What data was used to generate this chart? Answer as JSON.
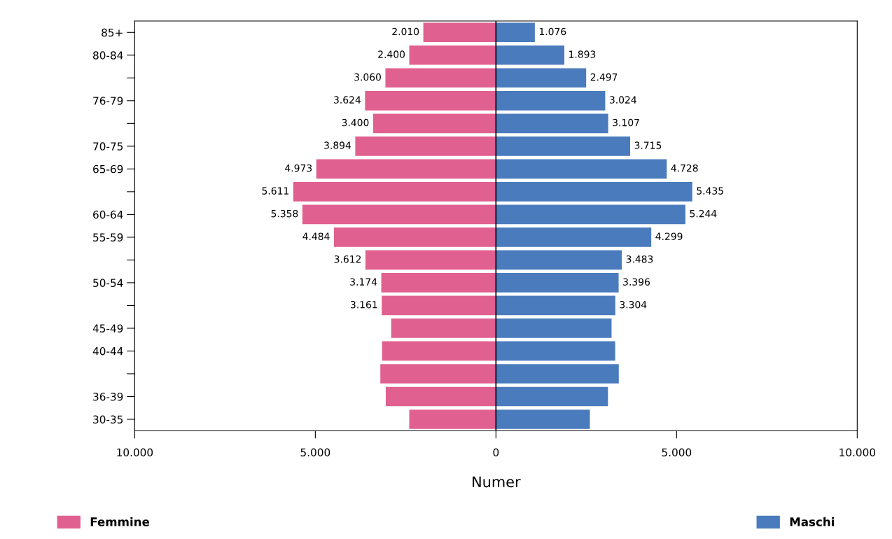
{
  "chart_data": {
    "type": "bar",
    "orientation": "horizontal",
    "categories": [
      "85+",
      "80-84",
      null,
      "76-79",
      null,
      "70-75",
      "65-69",
      null,
      "60-64",
      "55-59",
      null,
      "50-54",
      null,
      "45-49",
      "40-44",
      null,
      "36-39",
      "30-35"
    ],
    "series": [
      {
        "name": "Femmine",
        "color": "#e0608f",
        "values": [
          2010,
          2400,
          3060,
          3624,
          3400,
          3894,
          4973,
          5611,
          5358,
          4484,
          3612,
          3174,
          3161,
          2900,
          3150,
          3200,
          3050,
          2400
        ],
        "base": [
          -2010,
          -2400,
          -3060,
          -3624,
          -3400,
          -3894,
          -4973,
          -5611,
          -5358,
          -4484,
          -3612,
          -3174,
          -3161,
          -2900,
          -3150,
          -3200,
          -3050,
          -2400
        ],
        "value_labels": [
          "2.010",
          "2.400",
          "3.060",
          "3.624",
          "3.400",
          "3.894",
          "4.973",
          "5.611",
          "5.358",
          "4.484",
          "3.612",
          "3.174",
          "3.161",
          null,
          null,
          null,
          null,
          null
        ]
      },
      {
        "name": "Maschi",
        "color": "#4a7bbd",
        "values": [
          1076,
          1893,
          2497,
          3024,
          3107,
          3715,
          4728,
          5435,
          5244,
          4299,
          3483,
          3396,
          3304,
          3200,
          3300,
          3400,
          3100,
          2600
        ],
        "value_labels": [
          "1.076",
          "1.893",
          "2.497",
          "3.024",
          "3.107",
          "3.715",
          "4.728",
          "5.435",
          "5.244",
          "4.299",
          "3.483",
          "3.396",
          "3.304",
          null,
          null,
          null,
          null,
          null
        ]
      }
    ],
    "xlim": [
      -10000,
      10000
    ],
    "xticks": [
      {
        "value": -10000,
        "label": "10.000"
      },
      {
        "value": -5000,
        "label": "5.000"
      },
      0,
      {
        "value": 5000,
        "label": "5.000"
      },
      {
        "value": 10000,
        "label": "10.000"
      }
    ],
    "xlabel": "Numer",
    "legend": "bottom"
  }
}
